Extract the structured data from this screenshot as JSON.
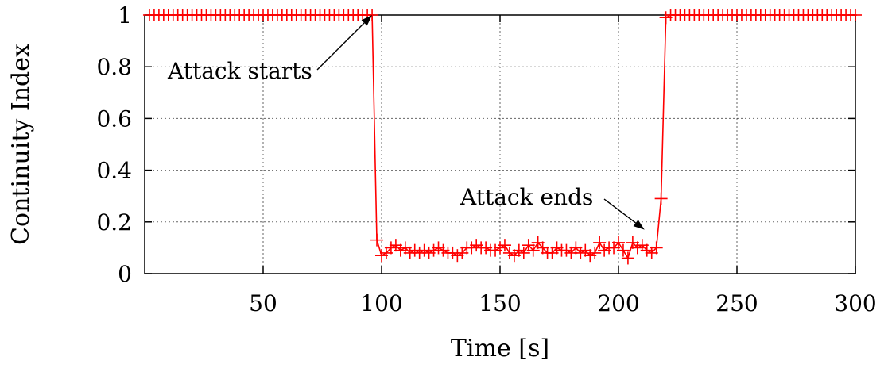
{
  "chart_data": {
    "type": "line",
    "xlabel": "Time [s]",
    "ylabel": "Continuity Index",
    "xlim": [
      0,
      300
    ],
    "ylim": [
      0,
      1
    ],
    "xticks": [
      50,
      100,
      150,
      200,
      250,
      300
    ],
    "yticks": [
      0,
      0.2,
      0.4,
      0.6,
      0.8,
      1
    ],
    "ytick_labels": [
      "0",
      "0.2",
      "0.4",
      "0.6",
      "0.8",
      "1"
    ],
    "grid": true,
    "series": [
      {
        "color": "#ff0000",
        "marker": "plus",
        "x": [
          2,
          4,
          6,
          8,
          10,
          12,
          14,
          16,
          18,
          20,
          22,
          24,
          26,
          28,
          30,
          32,
          34,
          36,
          38,
          40,
          42,
          44,
          46,
          48,
          50,
          52,
          54,
          56,
          58,
          60,
          62,
          64,
          66,
          68,
          70,
          72,
          74,
          76,
          78,
          80,
          82,
          84,
          86,
          88,
          90,
          92,
          94,
          96,
          98,
          100,
          102,
          104,
          106,
          108,
          110,
          112,
          114,
          116,
          118,
          120,
          122,
          124,
          126,
          128,
          130,
          132,
          134,
          136,
          138,
          140,
          142,
          144,
          146,
          148,
          150,
          152,
          154,
          156,
          158,
          160,
          162,
          164,
          166,
          168,
          170,
          172,
          174,
          176,
          178,
          180,
          182,
          184,
          186,
          188,
          190,
          192,
          194,
          196,
          198,
          200,
          202,
          204,
          206,
          208,
          210,
          212,
          214,
          216,
          218,
          220,
          222,
          224,
          226,
          228,
          230,
          232,
          234,
          236,
          238,
          240,
          242,
          244,
          246,
          248,
          250,
          252,
          254,
          256,
          258,
          260,
          262,
          264,
          266,
          268,
          270,
          272,
          274,
          276,
          278,
          280,
          282,
          284,
          286,
          288,
          290,
          292,
          294,
          296,
          298,
          300
        ],
        "y": [
          1,
          1,
          1,
          1,
          1,
          1,
          1,
          1,
          1,
          1,
          1,
          1,
          1,
          1,
          1,
          1,
          1,
          1,
          1,
          1,
          1,
          1,
          1,
          1,
          1,
          1,
          1,
          1,
          1,
          1,
          1,
          1,
          1,
          1,
          1,
          1,
          1,
          1,
          1,
          1,
          1,
          1,
          1,
          1,
          1,
          1,
          1,
          1,
          0.13,
          0.07,
          0.08,
          0.1,
          0.11,
          0.09,
          0.1,
          0.08,
          0.09,
          0.08,
          0.09,
          0.08,
          0.09,
          0.1,
          0.09,
          0.08,
          0.08,
          0.07,
          0.08,
          0.1,
          0.1,
          0.11,
          0.1,
          0.1,
          0.09,
          0.09,
          0.1,
          0.11,
          0.08,
          0.07,
          0.09,
          0.08,
          0.11,
          0.09,
          0.12,
          0.1,
          0.08,
          0.08,
          0.1,
          0.09,
          0.09,
          0.08,
          0.1,
          0.08,
          0.09,
          0.07,
          0.08,
          0.12,
          0.09,
          0.1,
          0.1,
          0.12,
          0.09,
          0.06,
          0.12,
          0.1,
          0.11,
          0.09,
          0.08,
          0.1,
          0.29,
          0.99,
          1,
          1,
          1,
          1,
          1,
          1,
          1,
          1,
          1,
          1,
          1,
          1,
          1,
          1,
          1,
          1,
          1,
          1,
          1,
          1,
          1,
          1,
          1,
          1,
          1,
          1,
          1,
          1,
          1,
          1,
          1,
          1,
          1,
          1,
          1,
          1,
          1,
          1,
          1,
          1
        ]
      }
    ],
    "annotations": [
      {
        "text": "Attack starts",
        "x": 96,
        "y": 1.0
      },
      {
        "text": "Attack ends",
        "x": 211,
        "y": 0.17
      }
    ]
  }
}
